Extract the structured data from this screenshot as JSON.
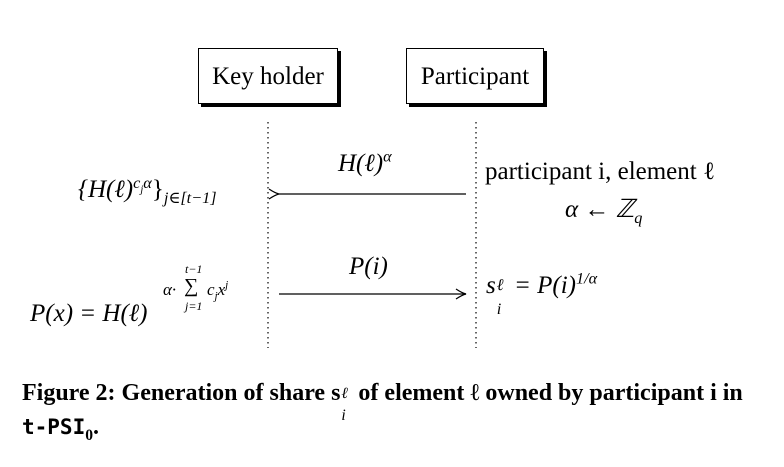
{
  "lanes": {
    "key_holder": "Key holder",
    "participant": "Participant"
  },
  "message1": {
    "label_base": "H(ℓ)",
    "label_sup": "α",
    "left_expr_base": "{H(ℓ)",
    "left_expr_sup": "c",
    "left_expr_sup_sub": "j",
    "left_expr_sup_tail": "α",
    "left_expr_close": "}",
    "left_expr_sub": "j∈[t−1]",
    "right_line1": "participant i, element ℓ",
    "right_line2": "α ← ℤ",
    "right_line2_sub": "q"
  },
  "message2": {
    "label": "P(i)",
    "left_expr": "P(x) = H(ℓ)",
    "exp_prefix": "α·",
    "sum_upper": "t−1",
    "sum_symbol": "∑",
    "sum_lower": "j=1",
    "sum_term": "c",
    "sum_term_sub": "j",
    "sum_term_x": "x",
    "sum_term_sup": "j",
    "right_s": "s",
    "right_s_sup": "ℓ",
    "right_s_sub": "i",
    "right_eq": "= P(i)",
    "right_eq_sup": "1/α"
  },
  "caption": {
    "prefix": "Figure 2: Generation of share s",
    "s_sup": "ℓ",
    "s_sub": "i",
    "middle": " of element ℓ owned by participant i in ",
    "protocol": "t-PSI",
    "protocol_sub": "0",
    "end": "."
  }
}
